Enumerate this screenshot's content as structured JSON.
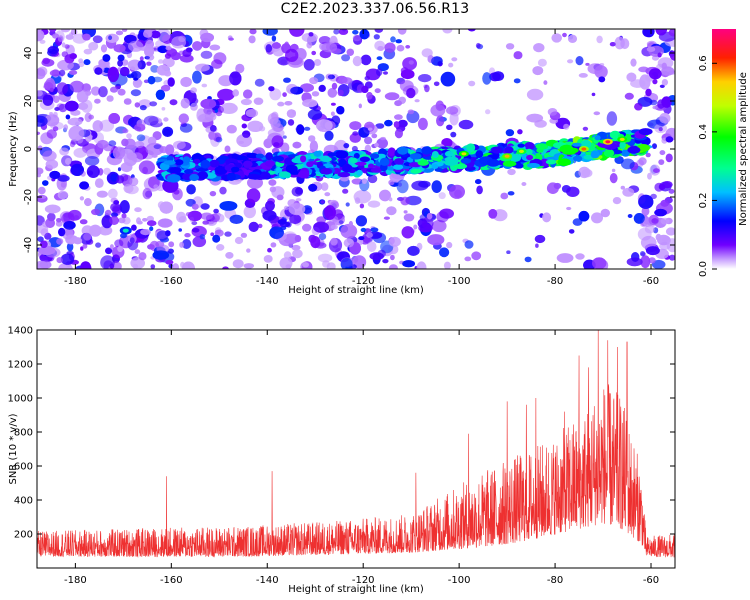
{
  "figure": {
    "title": "C2E2.2023.337.06.56.R13"
  },
  "chart_data": [
    {
      "type": "heatmap",
      "xlabel": "Height of straight line (km)",
      "ylabel": "Frequency (Hz)",
      "xlim": [
        -188,
        -55
      ],
      "ylim": [
        -50,
        50
      ],
      "xticks": [
        -180,
        -160,
        -140,
        -120,
        -100,
        -80,
        -60
      ],
      "yticks": [
        -40,
        -20,
        0,
        20,
        40
      ],
      "colorbar": {
        "label": "Normalized spectral amplitude",
        "range": [
          0.0,
          0.7
        ],
        "ticks": [
          0.0,
          0.2,
          0.4,
          0.6
        ],
        "colors": [
          "#ffffff",
          "#7000ff",
          "#0000ff",
          "#00c0ff",
          "#00ff90",
          "#00ff00",
          "#c0ff00",
          "#ffd000",
          "#ff6000",
          "#ff0000",
          "#ff0080"
        ]
      },
      "signal_band": {
        "description_points": [
          {
            "x": -161,
            "freq": -8
          },
          {
            "x": -140,
            "freq": -7
          },
          {
            "x": -120,
            "freq": -6
          },
          {
            "x": -100,
            "freq": -4
          },
          {
            "x": -80,
            "freq": -2
          },
          {
            "x": -68,
            "freq": 2
          },
          {
            "x": -63,
            "freq": 3
          }
        ],
        "peak_amplitude": 0.7
      }
    },
    {
      "type": "line",
      "xlabel": "Height of straight line (km)",
      "ylabel": "SNR (10 * v/v)",
      "xlim": [
        -188,
        -55
      ],
      "ylim": [
        0,
        1400
      ],
      "xticks": [
        -180,
        -160,
        -140,
        -120,
        -100,
        -80,
        -60
      ],
      "yticks": [
        200,
        400,
        600,
        800,
        1000,
        1200,
        1400
      ],
      "series": [
        {
          "color": "#ee3030",
          "envelope": [
            {
              "x": -188,
              "base": 120,
              "spread": 150
            },
            {
              "x": -165,
              "base": 125,
              "spread": 170
            },
            {
              "x": -145,
              "base": 130,
              "spread": 180
            },
            {
              "x": -125,
              "base": 150,
              "spread": 200
            },
            {
              "x": -110,
              "base": 170,
              "spread": 230
            },
            {
              "x": -102,
              "base": 230,
              "spread": 350
            },
            {
              "x": -95,
              "base": 280,
              "spread": 450
            },
            {
              "x": -88,
              "base": 330,
              "spread": 520
            },
            {
              "x": -80,
              "base": 400,
              "spread": 580
            },
            {
              "x": -74,
              "base": 480,
              "spread": 700
            },
            {
              "x": -70,
              "base": 560,
              "spread": 850
            },
            {
              "x": -66,
              "base": 500,
              "spread": 780
            },
            {
              "x": -62,
              "base": 300,
              "spread": 450
            },
            {
              "x": -61,
              "base": 110,
              "spread": 120
            },
            {
              "x": -55,
              "base": 110,
              "spread": 140
            }
          ],
          "peaks": [
            {
              "x": -71,
              "y": 1400
            },
            {
              "x": -69,
              "y": 1340
            },
            {
              "x": -65,
              "y": 1330
            },
            {
              "x": -67,
              "y": 1300
            },
            {
              "x": -73,
              "y": 1180
            },
            {
              "x": -75,
              "y": 1250
            },
            {
              "x": -98,
              "y": 790
            },
            {
              "x": -90,
              "y": 980
            },
            {
              "x": -84,
              "y": 1000
            },
            {
              "x": -86,
              "y": 960
            },
            {
              "x": -78,
              "y": 920
            },
            {
              "x": -161,
              "y": 540
            },
            {
              "x": -139,
              "y": 570
            },
            {
              "x": -109,
              "y": 560
            }
          ]
        }
      ]
    }
  ]
}
